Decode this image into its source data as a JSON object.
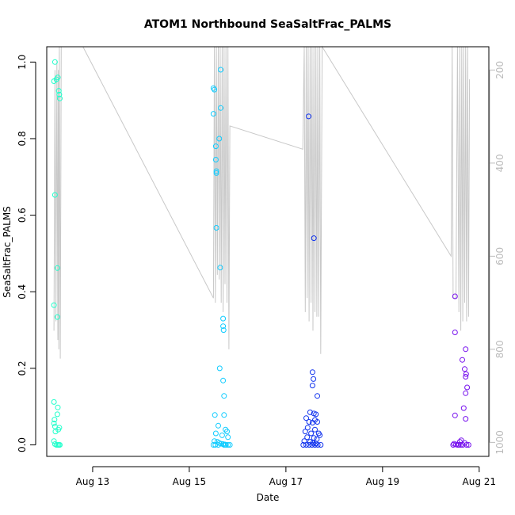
{
  "chart_data": {
    "type": "scatter",
    "title": "ATOM1 Northbound SeaSaltFrac_PALMS",
    "xlabel": "Date",
    "ylabel": "SeaSaltFrac_PALMS",
    "xlim_days": [
      12.05,
      21.2
    ],
    "ylim": [
      -0.03,
      1.04
    ],
    "x_ticks": [
      {
        "value": 13,
        "label": "Aug 13"
      },
      {
        "value": 15,
        "label": "Aug 15"
      },
      {
        "value": 17,
        "label": "Aug 17"
      },
      {
        "value": 19,
        "label": "Aug 19"
      },
      {
        "value": 21,
        "label": "Aug 21"
      }
    ],
    "y_ticks": [
      "0.0",
      "0.2",
      "0.4",
      "0.6",
      "0.8",
      "1.0"
    ],
    "secondary_axis": {
      "description": "pressure (reversed), gray altitude profile line",
      "ticks": [
        "200",
        "400",
        "600",
        "800",
        "1000"
      ],
      "lim": [
        1030,
        150
      ],
      "color": "#bbbbbb"
    },
    "series": [
      {
        "color": "#22ffcc",
        "x_range": [
          12.2,
          12.35
        ],
        "points": [
          [
            12.22,
            1.0
          ],
          [
            12.2,
            0.95
          ],
          [
            12.25,
            0.955
          ],
          [
            12.28,
            0.96
          ],
          [
            12.3,
            0.925
          ],
          [
            12.31,
            0.915
          ],
          [
            12.32,
            0.905
          ],
          [
            12.22,
            0.653
          ],
          [
            12.27,
            0.462
          ],
          [
            12.2,
            0.365
          ],
          [
            12.27,
            0.334
          ],
          [
            12.2,
            0.112
          ],
          [
            12.28,
            0.098
          ],
          [
            12.27,
            0.08
          ],
          [
            12.21,
            0.066
          ],
          [
            12.2,
            0.056
          ],
          [
            12.22,
            0.048
          ],
          [
            12.31,
            0.045
          ],
          [
            12.29,
            0.04
          ],
          [
            12.23,
            0.035
          ],
          [
            12.2,
            0.01
          ],
          [
            12.22,
            0.002
          ],
          [
            12.25,
            0.0
          ],
          [
            12.28,
            0.0
          ],
          [
            12.3,
            0.0
          ],
          [
            12.32,
            0.0
          ]
        ]
      },
      {
        "color": "#11ccff",
        "x_range": [
          15.5,
          15.85
        ],
        "points": [
          [
            15.65,
            0.98
          ],
          [
            15.5,
            0.932
          ],
          [
            15.52,
            0.928
          ],
          [
            15.65,
            0.88
          ],
          [
            15.5,
            0.865
          ],
          [
            15.62,
            0.8
          ],
          [
            15.55,
            0.78
          ],
          [
            15.55,
            0.745
          ],
          [
            15.56,
            0.715
          ],
          [
            15.56,
            0.71
          ],
          [
            15.56,
            0.567
          ],
          [
            15.64,
            0.463
          ],
          [
            15.7,
            0.33
          ],
          [
            15.7,
            0.31
          ],
          [
            15.71,
            0.3
          ],
          [
            15.63,
            0.2
          ],
          [
            15.7,
            0.168
          ],
          [
            15.72,
            0.128
          ],
          [
            15.53,
            0.078
          ],
          [
            15.72,
            0.078
          ],
          [
            15.6,
            0.05
          ],
          [
            15.75,
            0.04
          ],
          [
            15.78,
            0.035
          ],
          [
            15.55,
            0.03
          ],
          [
            15.68,
            0.025
          ],
          [
            15.8,
            0.02
          ],
          [
            15.52,
            0.01
          ],
          [
            15.58,
            0.008
          ],
          [
            15.62,
            0.005
          ],
          [
            15.66,
            0.003
          ],
          [
            15.7,
            0.002
          ],
          [
            15.74,
            0.001
          ],
          [
            15.5,
            0.0
          ],
          [
            15.54,
            0.0
          ],
          [
            15.6,
            0.0
          ],
          [
            15.72,
            0.0
          ],
          [
            15.76,
            0.0
          ],
          [
            15.8,
            0.0
          ],
          [
            15.84,
            0.0
          ]
        ]
      },
      {
        "color": "#1133ee",
        "x_range": [
          17.35,
          17.75
        ],
        "points": [
          [
            17.47,
            0.858
          ],
          [
            17.58,
            0.54
          ],
          [
            17.55,
            0.19
          ],
          [
            17.57,
            0.172
          ],
          [
            17.55,
            0.155
          ],
          [
            17.65,
            0.128
          ],
          [
            17.5,
            0.085
          ],
          [
            17.58,
            0.082
          ],
          [
            17.62,
            0.08
          ],
          [
            17.42,
            0.07
          ],
          [
            17.6,
            0.065
          ],
          [
            17.48,
            0.06
          ],
          [
            17.55,
            0.058
          ],
          [
            17.65,
            0.06
          ],
          [
            17.45,
            0.045
          ],
          [
            17.6,
            0.04
          ],
          [
            17.4,
            0.035
          ],
          [
            17.52,
            0.03
          ],
          [
            17.68,
            0.03
          ],
          [
            17.7,
            0.025
          ],
          [
            17.44,
            0.02
          ],
          [
            17.58,
            0.018
          ],
          [
            17.64,
            0.015
          ],
          [
            17.38,
            0.01
          ],
          [
            17.5,
            0.008
          ],
          [
            17.56,
            0.005
          ],
          [
            17.62,
            0.004
          ],
          [
            17.36,
            0.0
          ],
          [
            17.42,
            0.0
          ],
          [
            17.48,
            0.0
          ],
          [
            17.54,
            0.0
          ],
          [
            17.6,
            0.0
          ],
          [
            17.66,
            0.0
          ],
          [
            17.72,
            0.0
          ]
        ]
      },
      {
        "color": "#7711ee",
        "x_range": [
          20.45,
          20.8
        ],
        "points": [
          [
            20.5,
            0.388
          ],
          [
            20.5,
            0.294
          ],
          [
            20.72,
            0.25
          ],
          [
            20.65,
            0.222
          ],
          [
            20.7,
            0.198
          ],
          [
            20.73,
            0.185
          ],
          [
            20.72,
            0.178
          ],
          [
            20.75,
            0.15
          ],
          [
            20.72,
            0.135
          ],
          [
            20.68,
            0.096
          ],
          [
            20.5,
            0.077
          ],
          [
            20.72,
            0.068
          ],
          [
            20.63,
            0.012
          ],
          [
            20.6,
            0.008
          ],
          [
            20.7,
            0.005
          ],
          [
            20.48,
            0.003
          ],
          [
            20.52,
            0.001
          ],
          [
            20.46,
            0.0
          ],
          [
            20.55,
            0.0
          ],
          [
            20.58,
            0.0
          ],
          [
            20.62,
            0.0
          ],
          [
            20.66,
            0.0
          ],
          [
            20.74,
            0.0
          ],
          [
            20.78,
            0.0
          ]
        ]
      }
    ],
    "profile_line": {
      "color": "#c8c8c8",
      "points": [
        [
          12.2,
          760
        ],
        [
          12.22,
          200
        ],
        [
          12.24,
          740
        ],
        [
          12.26,
          180
        ],
        [
          12.28,
          780
        ],
        [
          12.29,
          200
        ],
        [
          12.3,
          800
        ],
        [
          12.31,
          150
        ],
        [
          12.33,
          820
        ],
        [
          12.35,
          150
        ],
        [
          12.5,
          150
        ],
        [
          12.8,
          150
        ],
        [
          15.5,
          690
        ],
        [
          15.52,
          150
        ],
        [
          15.54,
          700
        ],
        [
          15.56,
          150
        ],
        [
          15.58,
          640
        ],
        [
          15.6,
          150
        ],
        [
          15.62,
          650
        ],
        [
          15.64,
          150
        ],
        [
          15.66,
          700
        ],
        [
          15.68,
          150
        ],
        [
          15.7,
          720
        ],
        [
          15.72,
          150
        ],
        [
          15.74,
          660
        ],
        [
          15.76,
          150
        ],
        [
          15.78,
          700
        ],
        [
          15.8,
          150
        ],
        [
          15.82,
          800
        ],
        [
          15.84,
          320
        ],
        [
          17.35,
          370
        ],
        [
          17.38,
          150
        ],
        [
          17.4,
          720
        ],
        [
          17.42,
          150
        ],
        [
          17.44,
          690
        ],
        [
          17.46,
          150
        ],
        [
          17.48,
          740
        ],
        [
          17.5,
          150
        ],
        [
          17.52,
          700
        ],
        [
          17.54,
          150
        ],
        [
          17.56,
          760
        ],
        [
          17.58,
          150
        ],
        [
          17.6,
          720
        ],
        [
          17.62,
          150
        ],
        [
          17.64,
          730
        ],
        [
          17.66,
          150
        ],
        [
          17.68,
          730
        ],
        [
          17.7,
          150
        ],
        [
          17.72,
          810
        ],
        [
          17.75,
          150
        ],
        [
          20.42,
          600
        ],
        [
          20.44,
          150
        ],
        [
          20.46,
          690
        ],
        [
          20.48,
          690
        ],
        [
          20.52,
          690
        ],
        [
          20.55,
          150
        ],
        [
          20.58,
          720
        ],
        [
          20.6,
          150
        ],
        [
          20.62,
          760
        ],
        [
          20.64,
          150
        ],
        [
          20.66,
          740
        ],
        [
          20.68,
          150
        ],
        [
          20.7,
          700
        ],
        [
          20.72,
          150
        ],
        [
          20.74,
          740
        ],
        [
          20.76,
          150
        ],
        [
          20.78,
          730
        ],
        [
          20.8,
          220
        ]
      ]
    }
  }
}
